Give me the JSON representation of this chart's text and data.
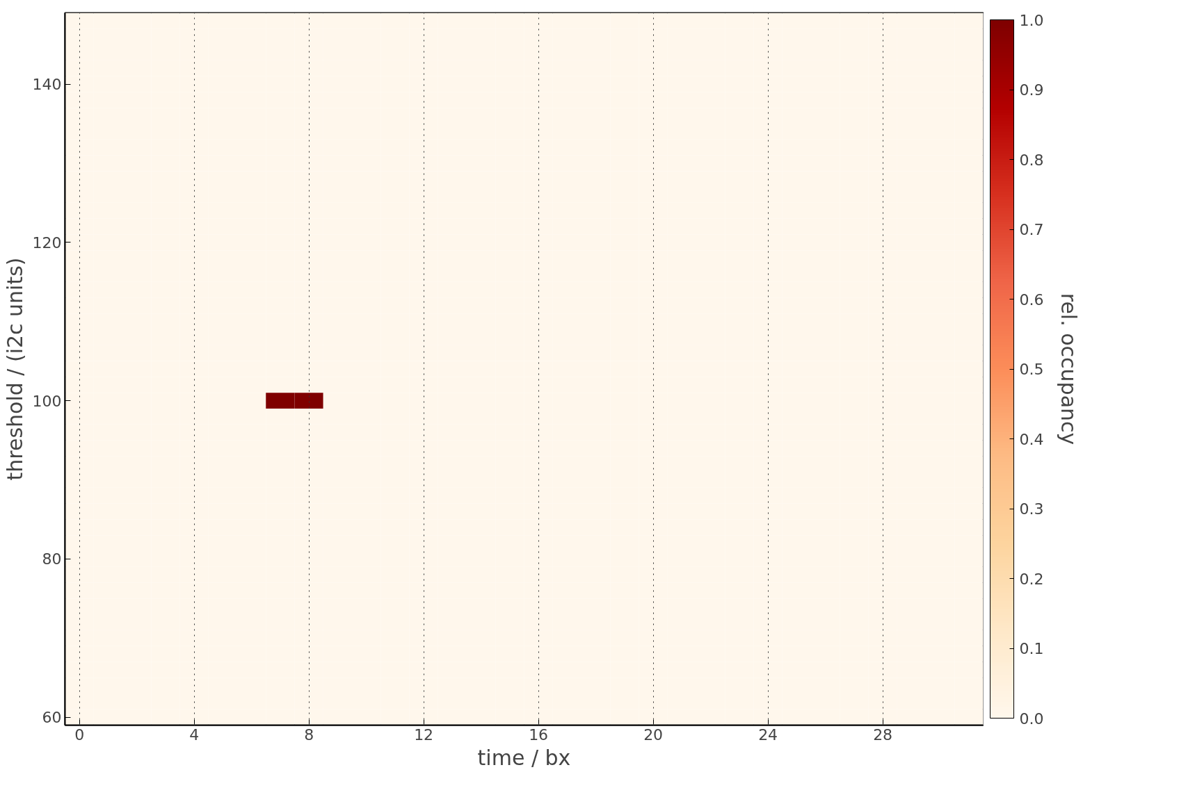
{
  "chart_data": {
    "type": "heatmap",
    "xlabel": "time / bx",
    "ylabel": "threshold / (i2c units)",
    "clabel": "rel. occupancy",
    "categories": [
      "0",
      null,
      null,
      null,
      "4",
      null,
      null,
      null,
      "8",
      null,
      null,
      null,
      "12",
      null,
      null,
      null,
      "16",
      null,
      null,
      null,
      "20",
      null,
      null,
      null,
      "24",
      null,
      null,
      null,
      "28",
      null,
      null,
      null
    ],
    "y_categories": [
      null,
      null,
      null,
      null,
      "140",
      null,
      null,
      null,
      null,
      null,
      null,
      null,
      null,
      null,
      "120",
      null,
      null,
      null,
      null,
      null,
      null,
      null,
      null,
      null,
      "100",
      null,
      null,
      null,
      null,
      null,
      null,
      null,
      null,
      null,
      "80",
      null,
      null,
      null,
      null,
      null,
      null,
      null,
      null,
      null,
      "60"
    ],
    "cells": [
      [
        0,
        0,
        0,
        0,
        0,
        0,
        0,
        0,
        0,
        0,
        0,
        0,
        0,
        0,
        0,
        0,
        0,
        0,
        0,
        0,
        0,
        0,
        0,
        0,
        0,
        0,
        0,
        0,
        0,
        0,
        0,
        0
      ],
      [
        0,
        0,
        0,
        0,
        0,
        0,
        0,
        0,
        0,
        0,
        0,
        0,
        0,
        0,
        0,
        0,
        0,
        0,
        0,
        0,
        0,
        0,
        0,
        0,
        0,
        0,
        0,
        0,
        0,
        0,
        0,
        0
      ],
      [
        0,
        0,
        0,
        0,
        0,
        0,
        0,
        0,
        0,
        0,
        0,
        0,
        0,
        0,
        0,
        0,
        0,
        0,
        0,
        0,
        0,
        0,
        0,
        0,
        0,
        0,
        0,
        0,
        0,
        0,
        0,
        0
      ],
      [
        0,
        0,
        0,
        0,
        0,
        0,
        0,
        0,
        0,
        0,
        0,
        0,
        0,
        0,
        0,
        0,
        0,
        0,
        0,
        0,
        0,
        0,
        0,
        0,
        0,
        0,
        0,
        0,
        0,
        0,
        0,
        0
      ],
      [
        0,
        0,
        0,
        0,
        0,
        0,
        0,
        0,
        0,
        0,
        0,
        0,
        0,
        0,
        0,
        0,
        0,
        0,
        0,
        0,
        0,
        0,
        0,
        0,
        0,
        0,
        0,
        0,
        0,
        0,
        0,
        0
      ],
      [
        0,
        0,
        0,
        0,
        0,
        0,
        0,
        0,
        0,
        0,
        0,
        0,
        0,
        0,
        0,
        0,
        0,
        0,
        0,
        0,
        0,
        0,
        0,
        0,
        0,
        0,
        0,
        0,
        0,
        0,
        0,
        0
      ],
      [
        0,
        0,
        0,
        0,
        0,
        0,
        0,
        0,
        0,
        0,
        0,
        0,
        0,
        0,
        0,
        0,
        0,
        0,
        0,
        0,
        0,
        0,
        0,
        0,
        0,
        0,
        0,
        0,
        0,
        0,
        0,
        0
      ],
      [
        0,
        0,
        0,
        0,
        0,
        0,
        0,
        0,
        0,
        0,
        0,
        0,
        0,
        0,
        0,
        0,
        0,
        0,
        0,
        0,
        0,
        0,
        0,
        0,
        0,
        0,
        0,
        0,
        0,
        0,
        0,
        0
      ],
      [
        0,
        0,
        0,
        0,
        0,
        0,
        0,
        0,
        0,
        0,
        0,
        0,
        0,
        0,
        0,
        0,
        0,
        0,
        0,
        0,
        0,
        0,
        0,
        0,
        0,
        0,
        0,
        0,
        0,
        0,
        0,
        0
      ],
      [
        0,
        0,
        0,
        0,
        0,
        0,
        0,
        0,
        0,
        0,
        0,
        0,
        0,
        0,
        0,
        0,
        0,
        0,
        0,
        0,
        0,
        0,
        0,
        0,
        0,
        0,
        0,
        0,
        0,
        0,
        0,
        0
      ],
      [
        0,
        0,
        0,
        0,
        0,
        0,
        0,
        0,
        0,
        0,
        0,
        0,
        0,
        0,
        0,
        0,
        0,
        0,
        0,
        0,
        0,
        0,
        0,
        0,
        0,
        0,
        0,
        0,
        0,
        0,
        0,
        0
      ],
      [
        0,
        0,
        0,
        0,
        0,
        0,
        0,
        0,
        0,
        0,
        0,
        0,
        0,
        0,
        0,
        0,
        0,
        0,
        0,
        0,
        0,
        0,
        0,
        0,
        0,
        0,
        0,
        0,
        0,
        0,
        0,
        0
      ],
      [
        0,
        0,
        0,
        0,
        0,
        0,
        0,
        0,
        0,
        0,
        0,
        0,
        0,
        0,
        0,
        0,
        0,
        0,
        0,
        0,
        0,
        0,
        0,
        0,
        0,
        0,
        0,
        0,
        0,
        0,
        0,
        0
      ],
      [
        0,
        0,
        0,
        0,
        0,
        0,
        0,
        0,
        0,
        0,
        0,
        0,
        0,
        0,
        0,
        0,
        0,
        0,
        0,
        0,
        0,
        0,
        0,
        0,
        0,
        0,
        0,
        0,
        0,
        0,
        0,
        0
      ],
      [
        0,
        0,
        0,
        0,
        0,
        0,
        0,
        0,
        0,
        0,
        0,
        0,
        0,
        0,
        0,
        0,
        0,
        0,
        0,
        0,
        0,
        0,
        0,
        0,
        0,
        0,
        0,
        0,
        0,
        0,
        0,
        0
      ],
      [
        0,
        0,
        0,
        0,
        0,
        0,
        0,
        0,
        0,
        0,
        0,
        0,
        0,
        0,
        0,
        0,
        0,
        0,
        0,
        0,
        0,
        0,
        0,
        0,
        0,
        0,
        0,
        0,
        0,
        0,
        0,
        0
      ],
      [
        0,
        0,
        0,
        0,
        0,
        0,
        0,
        0,
        0,
        0,
        0,
        0,
        0,
        0,
        0,
        0,
        0,
        0,
        0,
        0,
        0,
        0,
        0,
        0,
        0,
        0,
        0,
        0,
        0,
        0,
        0,
        0
      ],
      [
        0,
        0,
        0,
        0,
        0,
        0,
        0,
        0,
        0,
        0,
        0,
        0,
        0,
        0,
        0,
        0,
        0,
        0,
        0,
        0,
        0,
        0,
        0,
        0,
        0,
        0,
        0,
        0,
        0,
        0,
        0,
        0
      ],
      [
        0,
        0,
        0,
        0,
        0,
        0,
        0,
        0,
        0,
        0,
        0,
        0,
        0,
        0,
        0,
        0,
        0,
        0,
        0,
        0,
        0,
        0,
        0,
        0,
        0,
        0,
        0,
        0,
        0,
        0,
        0,
        0
      ],
      [
        0,
        0,
        0,
        0,
        0,
        0,
        0,
        0,
        0,
        0,
        0,
        0,
        0,
        0,
        0,
        0,
        0,
        0,
        0,
        0,
        0,
        0,
        0,
        0,
        0,
        0,
        0,
        0,
        0,
        0,
        0,
        0
      ],
      [
        0,
        0,
        0,
        0,
        0,
        0,
        0,
        0,
        0,
        0,
        0,
        0,
        0,
        0,
        0,
        0,
        0,
        0,
        0,
        0,
        0,
        0,
        0,
        0,
        0,
        0,
        0,
        0,
        0,
        0,
        0,
        0
      ],
      [
        0,
        0,
        0,
        0,
        0,
        0,
        0,
        0,
        0,
        0,
        0,
        0,
        0,
        0,
        0,
        0,
        0,
        0,
        0,
        0,
        0,
        0,
        0,
        0,
        0,
        0,
        0,
        0,
        0,
        0,
        0,
        0
      ],
      [
        0,
        0,
        0,
        0,
        0,
        0,
        0,
        0,
        0,
        0,
        0,
        0,
        0,
        0,
        0,
        0,
        0,
        0,
        0,
        0,
        0,
        0,
        0,
        0,
        0,
        0,
        0,
        0,
        0,
        0,
        0,
        0
      ],
      [
        0,
        0,
        0,
        0,
        0,
        0,
        0,
        0,
        0,
        0,
        0,
        0,
        0,
        0,
        0,
        0,
        0,
        0,
        0,
        0,
        0,
        0,
        0,
        0,
        0,
        0,
        0,
        0,
        0,
        0,
        0,
        0
      ],
      [
        0,
        0,
        0,
        0,
        0,
        0,
        0,
        1,
        1,
        0,
        0,
        0,
        0,
        0,
        0,
        0,
        0,
        0,
        0,
        0,
        0,
        0,
        0,
        0,
        0,
        0,
        0,
        0,
        0,
        0,
        0,
        0
      ],
      [
        0,
        0,
        0,
        0,
        0,
        0,
        0,
        0,
        0,
        0,
        0,
        0,
        0,
        0,
        0,
        0,
        0,
        0,
        0,
        0,
        0,
        0,
        0,
        0,
        0,
        0,
        0,
        0,
        0,
        0,
        0,
        0
      ],
      [
        0,
        0,
        0,
        0,
        0,
        0,
        0,
        0,
        0,
        0,
        0,
        0,
        0,
        0,
        0,
        0,
        0,
        0,
        0,
        0,
        0,
        0,
        0,
        0,
        0,
        0,
        0,
        0,
        0,
        0,
        0,
        0
      ],
      [
        0,
        0,
        0,
        0,
        0,
        0,
        0,
        0,
        0,
        0,
        0,
        0,
        0,
        0,
        0,
        0,
        0,
        0,
        0,
        0,
        0,
        0,
        0,
        0,
        0,
        0,
        0,
        0,
        0,
        0,
        0,
        0
      ],
      [
        0,
        0,
        0,
        0,
        0,
        0,
        0,
        0,
        0,
        0,
        0,
        0,
        0,
        0,
        0,
        0,
        0,
        0,
        0,
        0,
        0,
        0,
        0,
        0,
        0,
        0,
        0,
        0,
        0,
        0,
        0,
        0
      ],
      [
        0,
        0,
        0,
        0,
        0,
        0,
        0,
        0,
        0,
        0,
        0,
        0,
        0,
        0,
        0,
        0,
        0,
        0,
        0,
        0,
        0,
        0,
        0,
        0,
        0,
        0,
        0,
        0,
        0,
        0,
        0,
        0
      ],
      [
        0,
        0,
        0,
        0,
        0,
        0,
        0,
        0,
        0,
        0,
        0,
        0,
        0,
        0,
        0,
        0,
        0,
        0,
        0,
        0,
        0,
        0,
        0,
        0,
        0,
        0,
        0,
        0,
        0,
        0,
        0,
        0
      ],
      [
        0,
        0,
        0,
        0,
        0,
        0,
        0,
        0,
        0,
        0,
        0,
        0,
        0,
        0,
        0,
        0,
        0,
        0,
        0,
        0,
        0,
        0,
        0,
        0,
        0,
        0,
        0,
        0,
        0,
        0,
        0,
        0
      ],
      [
        0,
        0,
        0,
        0,
        0,
        0,
        0,
        0,
        0,
        0,
        0,
        0,
        0,
        0,
        0,
        0,
        0,
        0,
        0,
        0,
        0,
        0,
        0,
        0,
        0,
        0,
        0,
        0,
        0,
        0,
        0,
        0
      ],
      [
        0,
        0,
        0,
        0,
        0,
        0,
        0,
        0,
        0,
        0,
        0,
        0,
        0,
        0,
        0,
        0,
        0,
        0,
        0,
        0,
        0,
        0,
        0,
        0,
        0,
        0,
        0,
        0,
        0,
        0,
        0,
        0
      ],
      [
        0,
        0,
        0,
        0,
        0,
        0,
        0,
        0,
        0,
        0,
        0,
        0,
        0,
        0,
        0,
        0,
        0,
        0,
        0,
        0,
        0,
        0,
        0,
        0,
        0,
        0,
        0,
        0,
        0,
        0,
        0,
        0
      ],
      [
        0,
        0,
        0,
        0,
        0,
        0,
        0,
        0,
        0,
        0,
        0,
        0,
        0,
        0,
        0,
        0,
        0,
        0,
        0,
        0,
        0,
        0,
        0,
        0,
        0,
        0,
        0,
        0,
        0,
        0,
        0,
        0
      ],
      [
        0,
        0,
        0,
        0,
        0,
        0,
        0,
        0,
        0,
        0,
        0,
        0,
        0,
        0,
        0,
        0,
        0,
        0,
        0,
        0,
        0,
        0,
        0,
        0,
        0,
        0,
        0,
        0,
        0,
        0,
        0,
        0
      ],
      [
        0,
        0,
        0,
        0,
        0,
        0,
        0,
        0,
        0,
        0,
        0,
        0,
        0,
        0,
        0,
        0,
        0,
        0,
        0,
        0,
        0,
        0,
        0,
        0,
        0,
        0,
        0,
        0,
        0,
        0,
        0,
        0
      ],
      [
        0,
        0,
        0,
        0,
        0,
        0,
        0,
        0,
        0,
        0,
        0,
        0,
        0,
        0,
        0,
        0,
        0,
        0,
        0,
        0,
        0,
        0,
        0,
        0,
        0,
        0,
        0,
        0,
        0,
        0,
        0,
        0
      ],
      [
        0,
        0,
        0,
        0,
        0,
        0,
        0,
        0,
        0,
        0,
        0,
        0,
        0,
        0,
        0,
        0,
        0,
        0,
        0,
        0,
        0,
        0,
        0,
        0,
        0,
        0,
        0,
        0,
        0,
        0,
        0,
        0
      ],
      [
        0,
        0,
        0,
        0,
        0,
        0,
        0,
        0,
        0,
        0,
        0,
        0,
        0,
        0,
        0,
        0,
        0,
        0,
        0,
        0,
        0,
        0,
        0,
        0,
        0,
        0,
        0,
        0,
        0,
        0,
        0,
        0
      ],
      [
        0,
        0,
        0,
        0,
        0,
        0,
        0,
        0,
        0,
        0,
        0,
        0,
        0,
        0,
        0,
        0,
        0,
        0,
        0,
        0,
        0,
        0,
        0,
        0,
        0,
        0,
        0,
        0,
        0,
        0,
        0,
        0
      ],
      [
        0,
        0,
        0,
        0,
        0,
        0,
        0,
        0,
        0,
        0,
        0,
        0,
        0,
        0,
        0,
        0,
        0,
        0,
        0,
        0,
        0,
        0,
        0,
        0,
        0,
        0,
        0,
        0,
        0,
        0,
        0,
        0
      ],
      [
        0,
        0,
        0,
        0,
        0,
        0,
        0,
        0,
        0,
        0,
        0,
        0,
        0,
        0,
        0,
        0,
        0,
        0,
        0,
        0,
        0,
        0,
        0,
        0,
        0,
        0,
        0,
        0,
        0,
        0,
        0,
        0
      ],
      [
        0,
        0,
        0,
        0,
        0,
        0,
        0,
        0,
        0,
        0,
        0,
        0,
        0,
        0,
        0,
        0,
        0,
        0,
        0,
        0,
        0,
        0,
        0,
        0,
        0,
        0,
        0,
        0,
        0,
        0,
        0,
        0
      ]
    ],
    "clim": [
      0,
      1
    ],
    "cticks": [
      {
        "value": 0,
        "label": "0.0"
      },
      0.1,
      0.2,
      0.3,
      0.4,
      0.5,
      0.6,
      0.7,
      0.8,
      0.9,
      {
        "value": 1,
        "label": "1.0"
      }
    ],
    "grid": "x"
  }
}
